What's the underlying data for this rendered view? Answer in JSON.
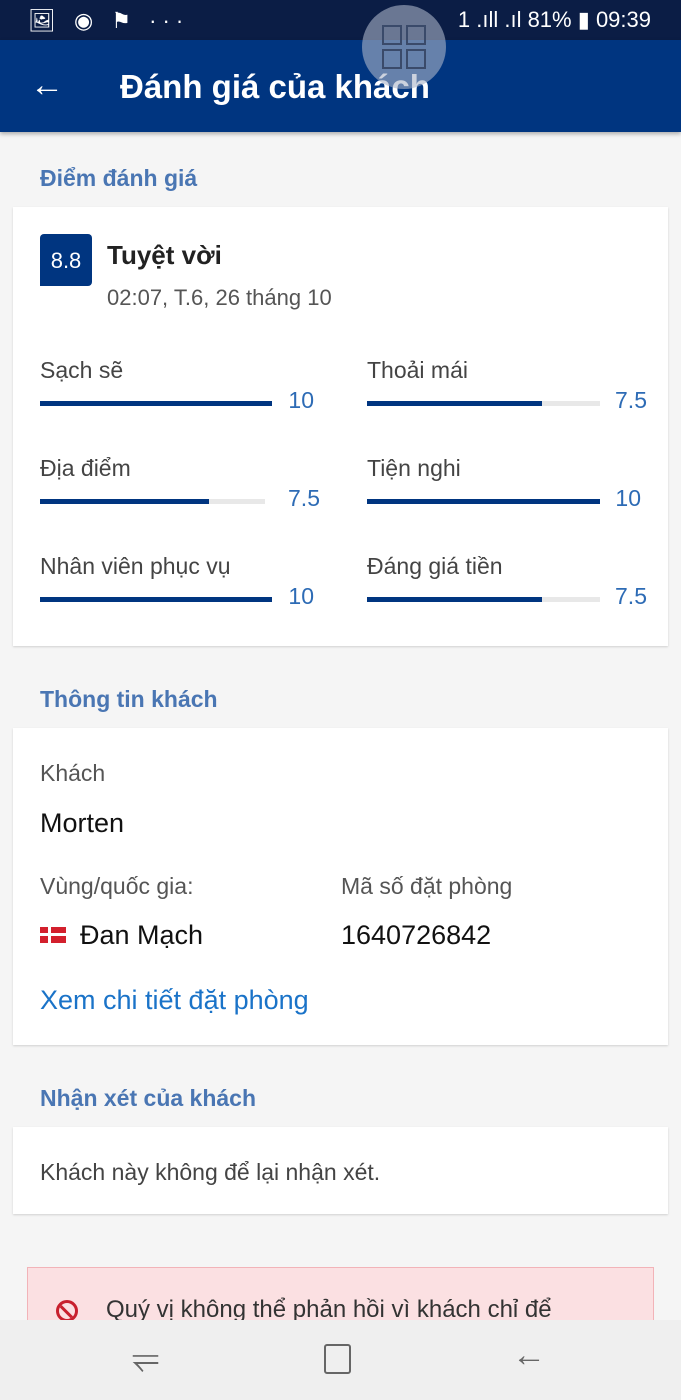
{
  "status_bar": {
    "left_icons": "🖼 ◉ ⚑ ···",
    "right": "1 .ıll .ıl 81% ▮ 09:39"
  },
  "app_bar": {
    "title": "Đánh giá của khách"
  },
  "score_section": {
    "heading": "Điểm đánh giá",
    "score": "8.8",
    "rating_label": "Tuyệt vời",
    "date": "02:07, T.6, 26 tháng 10",
    "categories": [
      {
        "label": "Sạch sẽ",
        "value": "10",
        "fraction": 1.0
      },
      {
        "label": "Thoải mái",
        "value": "7.5",
        "fraction": 0.75
      },
      {
        "label": "Địa điểm",
        "value": "7.5",
        "fraction": 0.75
      },
      {
        "label": "Tiện nghi",
        "value": "10",
        "fraction": 1.0
      },
      {
        "label": "Nhân viên phục vụ",
        "value": "10",
        "fraction": 1.0
      },
      {
        "label": "Đáng giá tiền",
        "value": "7.5",
        "fraction": 0.75
      }
    ]
  },
  "guest_section": {
    "heading": "Thông tin khách",
    "guest_label": "Khách",
    "guest_name": "Morten",
    "country_label": "Vùng/quốc gia:",
    "country": "Đan Mạch",
    "booking_label": "Mã số đặt phòng",
    "booking_number": "1640726842",
    "details_link": "Xem chi tiết đặt phòng"
  },
  "review_section": {
    "heading": "Nhận xét của khách",
    "text": "Khách này không để lại nhận xét."
  },
  "alert": {
    "text": "Quý vị không thể phản hồi vì khách chỉ để"
  },
  "colors": {
    "brand": "#003580",
    "accent": "#2d6bb5",
    "alert_bg": "#fbe0e2"
  }
}
